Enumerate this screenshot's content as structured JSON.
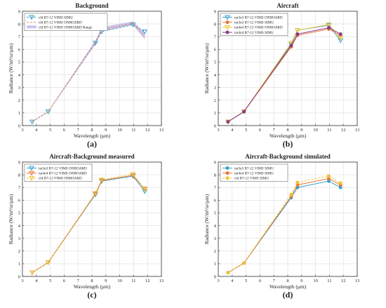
{
  "chart_data": [
    {
      "type": "line",
      "title": "Background",
      "xlabel": "Wavelength (μm)",
      "ylabel": "Radiance (W/m²/sr/μm)",
      "xlim": [
        3,
        13
      ],
      "ylim": [
        0,
        9
      ],
      "xticks": [
        "3",
        "4",
        "5",
        "6",
        "7",
        "8",
        "9",
        "10",
        "11",
        "12",
        "13"
      ],
      "yticks": [
        "0",
        "1",
        "2",
        "3",
        "4",
        "5",
        "6",
        "7",
        "8",
        "9"
      ],
      "grid": true,
      "legend": "top-left",
      "caption": "(a)",
      "x": [
        3.7,
        4.85,
        8.25,
        8.7,
        10.95,
        11.8
      ],
      "series": [
        {
          "name": "cld B7-12 VIMS SIMU",
          "values": [
            0.3,
            1.1,
            6.5,
            7.4,
            7.95,
            7.4
          ],
          "color": "#3a9cc7",
          "marker": "triangle-down",
          "dash": "dashed"
        },
        {
          "name": "cld B7-12 VIMS ONBOARD",
          "values": [
            0.3,
            1.1,
            6.55,
            7.55,
            8.05,
            7.0
          ],
          "color": "#e8875a",
          "marker": "none",
          "dash": "dashed"
        }
      ],
      "band": {
        "name": "cld B7-12 VIMS ONBOARD Range",
        "low": [
          0.28,
          1.06,
          6.4,
          7.4,
          7.9,
          6.8
        ],
        "high": [
          0.34,
          1.14,
          6.7,
          7.75,
          8.2,
          7.3
        ],
        "color": "#a89be0"
      }
    },
    {
      "type": "line",
      "title": "Aircraft",
      "xlabel": "Wavelength (μm)",
      "ylabel": "Radiance (W/m²/sr/μm)",
      "xlim": [
        3,
        13
      ],
      "ylim": [
        0,
        9
      ],
      "xticks": [
        "3",
        "4",
        "5",
        "6",
        "7",
        "8",
        "9",
        "10",
        "11",
        "12",
        "13"
      ],
      "yticks": [
        "0",
        "1",
        "2",
        "3",
        "4",
        "5",
        "6",
        "7",
        "8",
        "9"
      ],
      "grid": true,
      "legend": "top-left",
      "caption": "(b)",
      "x": [
        3.7,
        4.85,
        8.25,
        8.7,
        10.95,
        11.8
      ],
      "series": [
        {
          "name": "tar3n3 B7-12 VIMS ONBOARD",
          "values": [
            0.3,
            1.1,
            6.4,
            7.5,
            7.9,
            6.7
          ],
          "color": "#3aa0c8",
          "marker": "triangle-down",
          "dash": "solid"
        },
        {
          "name": "tar3n3 B7-12 VIMS SIMU",
          "values": [
            0.3,
            1.1,
            6.2,
            7.1,
            7.6,
            7.1
          ],
          "color": "#e8763a",
          "marker": "dot",
          "dash": "solid"
        },
        {
          "name": "tar4n4 B7-12 VIMS ONBOARD",
          "values": [
            0.3,
            1.1,
            6.5,
            7.5,
            7.95,
            6.9
          ],
          "color": "#f2c230",
          "marker": "triangle-down",
          "dash": "solid"
        },
        {
          "name": "tar4n4 B7-12 VIMS SIMU",
          "values": [
            0.3,
            1.1,
            6.3,
            7.2,
            7.7,
            7.2
          ],
          "color": "#8a3b8c",
          "marker": "dot",
          "dash": "solid"
        }
      ]
    },
    {
      "type": "line",
      "title": "Aircraft-Background measured",
      "xlabel": "Wavelength (μm)",
      "ylabel": "Radiance (W/m²/sr/μm)",
      "xlim": [
        3,
        13
      ],
      "ylim": [
        0,
        9
      ],
      "xticks": [
        "3",
        "4",
        "5",
        "6",
        "7",
        "8",
        "9",
        "10",
        "11",
        "12",
        "13"
      ],
      "yticks": [
        "0",
        "1",
        "2",
        "3",
        "4",
        "5",
        "6",
        "7",
        "8",
        "9"
      ],
      "grid": true,
      "legend": "top-left",
      "caption": "(c)",
      "x": [
        3.7,
        4.85,
        8.25,
        8.7,
        10.95,
        11.8
      ],
      "series": [
        {
          "name": "tar3n3 B7-12 VIMS ONBOARD",
          "values": [
            0.3,
            1.1,
            6.45,
            7.5,
            7.9,
            6.7
          ],
          "color": "#3aa0c8",
          "marker": "triangle-down",
          "dash": "solid"
        },
        {
          "name": "tar4n4 B7-12 VIMS ONBOARD",
          "values": [
            0.3,
            1.1,
            6.5,
            7.55,
            7.95,
            6.9
          ],
          "color": "#e8763a",
          "marker": "triangle-down",
          "dash": "solid"
        },
        {
          "name": "cld B7-12 VIMS ONBOARD",
          "values": [
            0.3,
            1.1,
            6.55,
            7.6,
            8.05,
            6.85
          ],
          "color": "#f2c230",
          "marker": "triangle-down",
          "dash": "dashed"
        }
      ]
    },
    {
      "type": "line",
      "title": "Aircraft-Background simulated",
      "xlabel": "Wavelength (μm)",
      "ylabel": "Radiance (W/m²/sr/μm)",
      "xlim": [
        3,
        13
      ],
      "ylim": [
        0,
        9
      ],
      "xticks": [
        "3",
        "4",
        "5",
        "6",
        "7",
        "8",
        "9",
        "10",
        "11",
        "12",
        "13"
      ],
      "yticks": [
        "0",
        "1",
        "2",
        "3",
        "4",
        "5",
        "6",
        "7",
        "8",
        "9"
      ],
      "grid": true,
      "legend": "top-left",
      "caption": "(d)",
      "x": [
        3.7,
        4.85,
        8.25,
        8.7,
        10.95,
        11.8
      ],
      "series": [
        {
          "name": "tar3n3 B7-12 VIMS SIMU",
          "values": [
            0.3,
            1.05,
            6.2,
            7.0,
            7.5,
            7.0
          ],
          "color": "#3aa0c8",
          "marker": "dot",
          "dash": "solid"
        },
        {
          "name": "tar4n4 B7-12 VIMS SIMU",
          "values": [
            0.3,
            1.05,
            6.3,
            7.2,
            7.7,
            7.2
          ],
          "color": "#e8763a",
          "marker": "dot",
          "dash": "solid"
        },
        {
          "name": "cld B7-12 VIMS SIMU",
          "values": [
            0.3,
            1.05,
            6.45,
            7.4,
            7.9,
            7.35
          ],
          "color": "#f2c230",
          "marker": "dot",
          "dash": "dashed"
        }
      ]
    }
  ]
}
